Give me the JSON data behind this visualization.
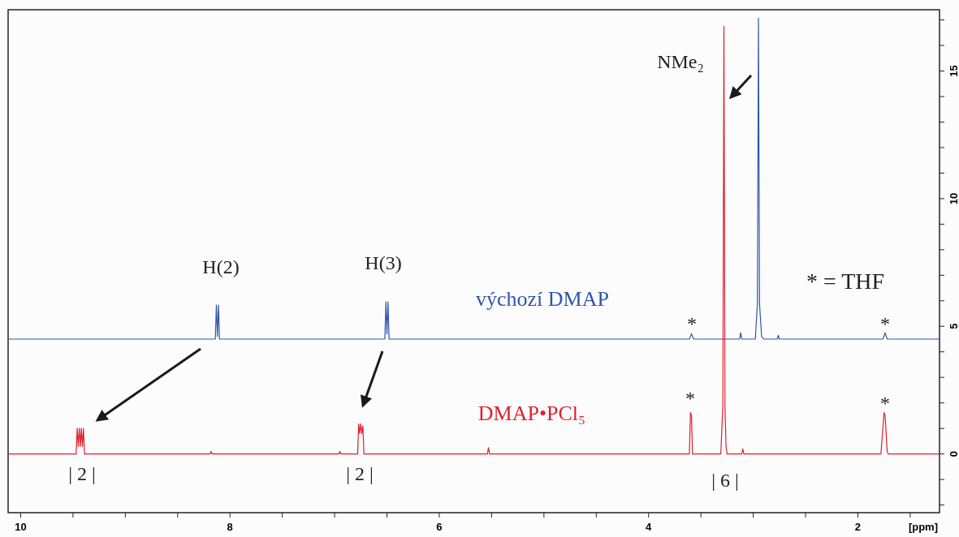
{
  "chart_data": {
    "type": "line",
    "xlabel": "[ppm]",
    "xlim": [
      10.12,
      1.22
    ],
    "xticks": [
      10,
      {
        "value": 9.5,
        "label": null
      },
      {
        "value": 9,
        "label": null
      },
      {
        "value": 8.5,
        "label": null
      },
      8,
      {
        "value": 7.5,
        "label": null
      },
      {
        "value": 7,
        "label": null
      },
      {
        "value": 6.5,
        "label": null
      },
      6,
      {
        "value": 5.5,
        "label": null
      },
      {
        "value": 5,
        "label": null
      },
      {
        "value": 4.5,
        "label": null
      },
      4,
      {
        "value": 3.5,
        "label": null
      },
      {
        "value": 3,
        "label": null
      },
      {
        "value": 2.5,
        "label": null
      },
      2,
      {
        "value": 1.5,
        "label": null
      }
    ],
    "ylim": [
      -2.3,
      17.4
    ],
    "yticks": [
      {
        "value": -2,
        "label": null
      },
      {
        "value": -1,
        "label": null
      },
      0,
      {
        "value": 1,
        "label": null
      },
      {
        "value": 2,
        "label": null
      },
      {
        "value": 3,
        "label": null
      },
      {
        "value": 4,
        "label": null
      },
      5,
      {
        "value": 6,
        "label": null
      },
      {
        "value": 7,
        "label": null
      },
      {
        "value": 8,
        "label": null
      },
      {
        "value": 9,
        "label": null
      },
      10,
      {
        "value": 11,
        "label": null
      },
      {
        "value": 12,
        "label": null
      },
      {
        "value": 13,
        "label": null
      },
      {
        "value": 14,
        "label": null
      },
      15,
      {
        "value": 16,
        "label": null
      },
      {
        "value": 17,
        "label": null
      }
    ],
    "grid": false,
    "marker": "none",
    "line_style": "solid",
    "series": [
      {
        "name": "výchozí DMAP",
        "color": "#2f56a8",
        "x": [
          10.12,
          8.14,
          8.13,
          8.12,
          8.11,
          8.1,
          6.52,
          6.51,
          6.5,
          6.49,
          6.48,
          3.61,
          3.59,
          3.57,
          3.13,
          3.12,
          3.11,
          2.98,
          2.96,
          2.95,
          2.94,
          2.92,
          2.9,
          2.77,
          2.76,
          2.75,
          1.76,
          1.74,
          1.72,
          1.22
        ],
        "values": [
          4.5,
          4.5,
          5.83,
          4.6,
          5.83,
          4.5,
          4.5,
          5.96,
          4.7,
          5.96,
          4.5,
          4.5,
          4.71,
          4.5,
          4.5,
          4.75,
          4.5,
          4.5,
          5.9,
          17.07,
          5.9,
          4.6,
          4.5,
          4.5,
          4.65,
          4.5,
          4.5,
          4.75,
          4.5,
          4.5
        ]
      },
      {
        "name": "DMAP•PCl₅",
        "color": "#e0202c",
        "x": [
          10.12,
          9.47,
          9.46,
          9.45,
          9.44,
          9.43,
          9.42,
          9.41,
          9.4,
          9.39,
          8.19,
          8.18,
          8.17,
          6.96,
          6.95,
          6.94,
          6.78,
          6.77,
          6.76,
          6.75,
          6.74,
          6.73,
          6.72,
          5.54,
          5.53,
          5.52,
          3.61,
          3.6,
          3.59,
          3.58,
          3.31,
          3.29,
          3.28,
          3.27,
          3.26,
          3.25,
          3.11,
          3.1,
          3.09,
          1.78,
          1.75,
          1.74,
          1.72,
          1.71,
          1.22
        ],
        "values": [
          0,
          0,
          1.0,
          0.3,
          1.0,
          0.3,
          1.0,
          0.3,
          1.0,
          0,
          0,
          0.1,
          0,
          0,
          0.1,
          0,
          0,
          1.18,
          0.8,
          1.18,
          0.8,
          1.1,
          0,
          0,
          0.25,
          0,
          0,
          1.62,
          1.5,
          0,
          0,
          1.9,
          16.75,
          1.9,
          0.3,
          0,
          0,
          0.2,
          0,
          0,
          1.62,
          1.5,
          0.1,
          0,
          0
        ]
      }
    ],
    "annotations": [
      "H(2)",
      "H(3)",
      "NMe₂",
      "* = THF",
      "*",
      "*",
      "*",
      "*",
      "| 2 |",
      "| 2 |",
      "| 6 |"
    ]
  }
}
